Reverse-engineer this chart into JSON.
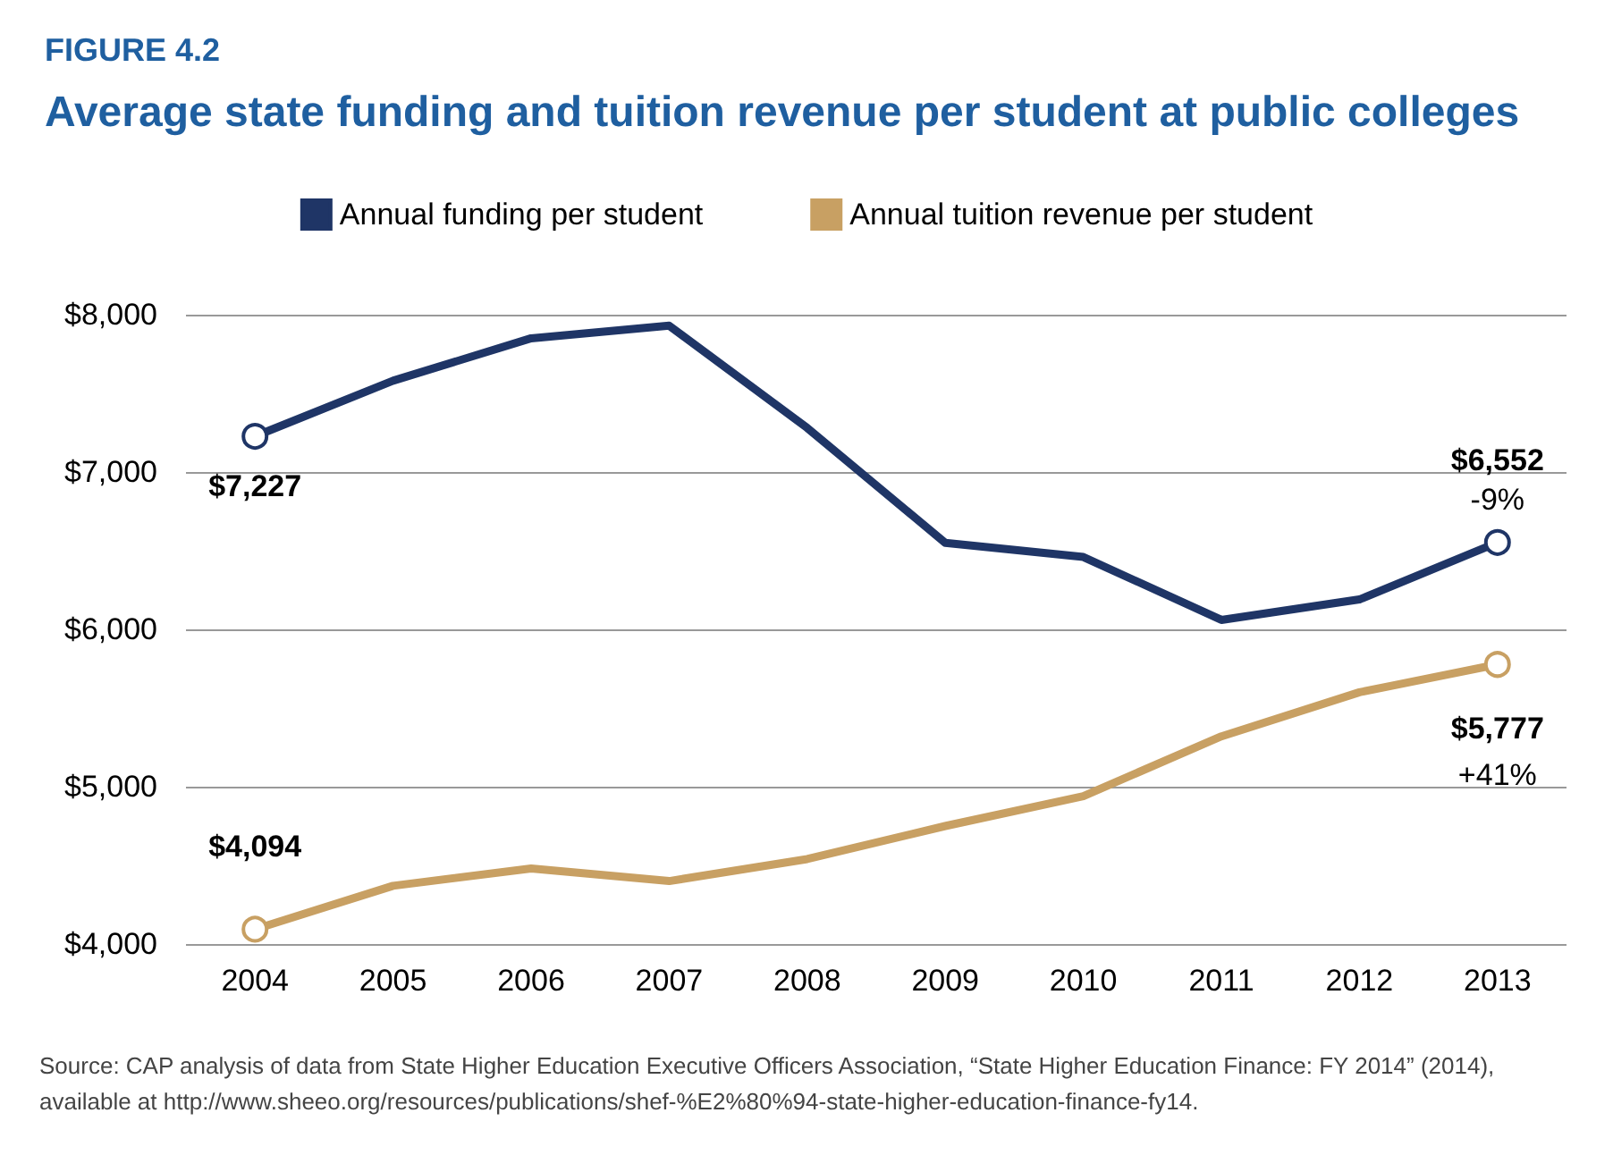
{
  "chart_data": {
    "type": "line",
    "subtitle": "FIGURE 4.2",
    "title": "Average state funding and tuition revenue per student at public colleges",
    "categories": [
      "2004",
      "2005",
      "2006",
      "2007",
      "2008",
      "2009",
      "2010",
      "2011",
      "2012",
      "2013"
    ],
    "series": [
      {
        "name": "Annual funding per student",
        "color": "#1f3566",
        "values": [
          7227,
          7580,
          7850,
          7930,
          7280,
          6550,
          6460,
          6060,
          6190,
          6552
        ],
        "value_labels": [
          "$7,227",
          null,
          null,
          null,
          null,
          null,
          null,
          null,
          null,
          "$6,552"
        ]
      },
      {
        "name": "Annual tuition revenue per student",
        "color": "#c8a063",
        "values": [
          4094,
          4370,
          4480,
          4400,
          4540,
          4750,
          4940,
          5320,
          5600,
          5777
        ],
        "value_labels": [
          "$4,094",
          null,
          null,
          null,
          null,
          null,
          null,
          null,
          null,
          "$5,777"
        ]
      }
    ],
    "ylim": [
      4000,
      8000
    ],
    "yticks": [
      {
        "value": 4000,
        "label": "$4,000"
      },
      {
        "value": 5000,
        "label": "$5,000"
      },
      {
        "value": 6000,
        "label": "$6,000"
      },
      {
        "value": 7000,
        "label": "$7,000"
      },
      {
        "value": 8000,
        "label": "$8,000"
      }
    ],
    "grid": "y",
    "legend": "top",
    "line_style": "solid",
    "annotations": [
      "-9%",
      "+41%",
      "Source: CAP analysis of data from State Higher Education Executive Officers Association, “State Higher Education Finance: FY 2014” (2014), available at http://www.sheeo.org/resources/publications/shef-%E2%80%94-state-higher-education-finance-fy14."
    ]
  }
}
